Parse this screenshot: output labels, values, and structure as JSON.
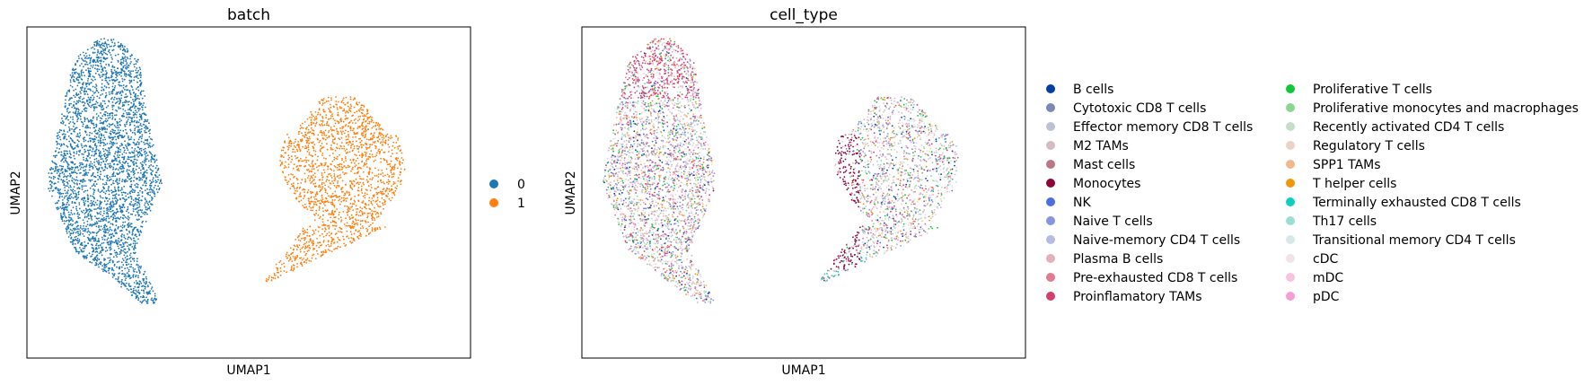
{
  "chart_data": [
    {
      "type": "scatter",
      "title": "batch",
      "xlabel": "UMAP1",
      "ylabel": "UMAP2",
      "xticks": [],
      "yticks": [],
      "legend_placement": "right",
      "legend": [
        {
          "label": "0",
          "color": "#1f77b4"
        },
        {
          "label": "1",
          "color": "#ff7f0e"
        }
      ],
      "clusters": [
        {
          "name": "0",
          "color": "#1f77b4",
          "center": [
            -6.2,
            2.8
          ],
          "shape": "large elongated cluster with peak at top, tapering at bottom"
        },
        {
          "name": "1",
          "color": "#ff7f0e",
          "center": [
            5.2,
            0.8
          ],
          "shape": "smaller rounded cluster tapering to the lower left"
        }
      ]
    },
    {
      "type": "scatter",
      "title": "cell_type",
      "xlabel": "UMAP1",
      "ylabel": "UMAP2",
      "xticks": [],
      "yticks": [],
      "legend_placement": "right",
      "legend_columns": 2,
      "legend": [
        {
          "label": "B cells",
          "color": "#023fa5"
        },
        {
          "label": "Cytotoxic CD8 T cells",
          "color": "#7d87b9"
        },
        {
          "label": "Effector memory CD8 T cells",
          "color": "#bec1d4"
        },
        {
          "label": "M2 TAMs",
          "color": "#d6bcc0"
        },
        {
          "label": "Mast cells",
          "color": "#bb7784"
        },
        {
          "label": "Monocytes",
          "color": "#8e063b"
        },
        {
          "label": "NK",
          "color": "#4a6fe3"
        },
        {
          "label": "Naive T cells",
          "color": "#8595e1"
        },
        {
          "label": "Naive-memory CD4 T cells",
          "color": "#b5bbe3"
        },
        {
          "label": "Plasma B cells",
          "color": "#e6afb9"
        },
        {
          "label": "Pre-exhausted CD8 T cells",
          "color": "#e07b91"
        },
        {
          "label": "Proinflamatory TAMs",
          "color": "#d33f6a"
        },
        {
          "label": "Proliferative T cells",
          "color": "#11c638"
        },
        {
          "label": "Proliferative monocytes and macrophages",
          "color": "#8dd593"
        },
        {
          "label": "Recently activated CD4 T cells",
          "color": "#c6dec7"
        },
        {
          "label": "Regulatory T cells",
          "color": "#ead3c6"
        },
        {
          "label": "SPP1 TAMs",
          "color": "#f0b98d"
        },
        {
          "label": "T helper cells",
          "color": "#ef9708"
        },
        {
          "label": "Terminally exhausted CD8 T cells",
          "color": "#0fcfc0"
        },
        {
          "label": "Th17 cells",
          "color": "#9cded6"
        },
        {
          "label": "Transitional memory CD4 T cells",
          "color": "#d5eae7"
        },
        {
          "label": "cDC",
          "color": "#f3e1eb"
        },
        {
          "label": "mDC",
          "color": "#f6c4e1"
        },
        {
          "label": "pDC",
          "color": "#f79cd4"
        }
      ]
    }
  ]
}
